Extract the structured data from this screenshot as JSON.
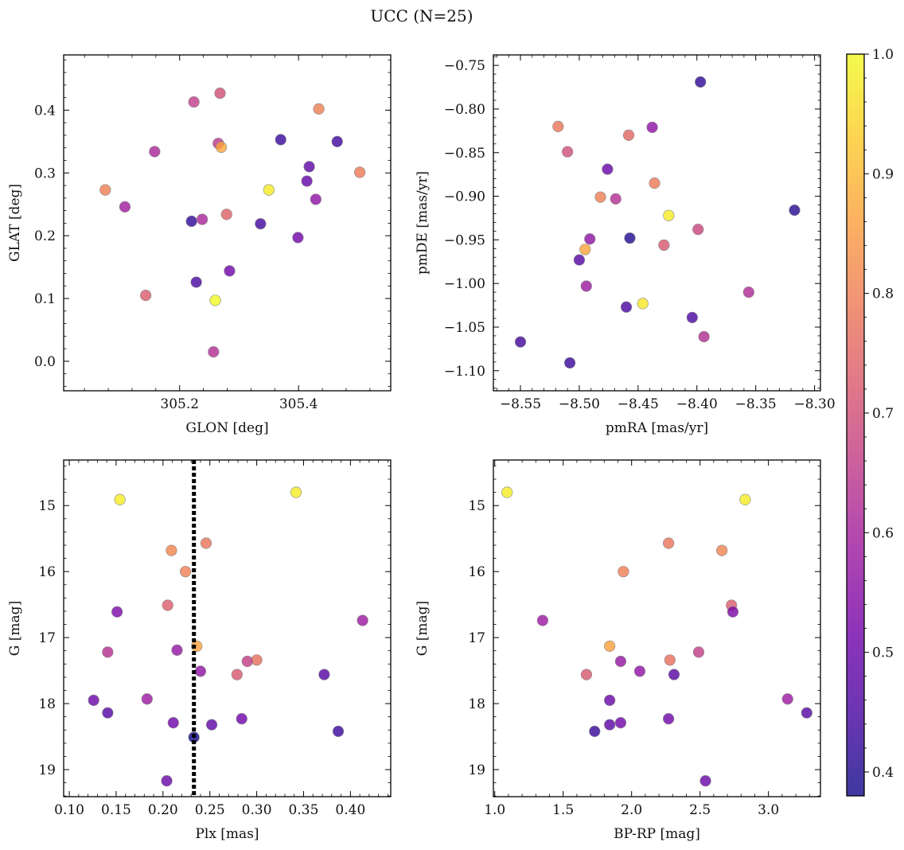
{
  "figure": {
    "title": "UCC (N=25)"
  },
  "colormap": {
    "name": "plasma",
    "stops": [
      "#0d0887",
      "#46039f",
      "#7201a8",
      "#9c179e",
      "#bd3786",
      "#d8576b",
      "#ed7953",
      "#fb9f3a",
      "#fdca26",
      "#f0f921"
    ],
    "marker_alpha": 0.8,
    "marker_edge_color": "#888888"
  },
  "colorbar": {
    "range": [
      0.38,
      1.0
    ],
    "ticks": [
      0.4,
      0.5,
      0.6,
      0.7,
      0.8,
      0.9,
      1.0
    ],
    "tick_labels": [
      "0.4",
      "0.5",
      "0.6",
      "0.7",
      "0.8",
      "0.9",
      "1.0"
    ]
  },
  "chart_data": [
    {
      "type": "scatter",
      "title": "",
      "xlabel": "GLON [deg]",
      "ylabel": "GLAT [deg]",
      "xlim": [
        305.005,
        305.555
      ],
      "ylim": [
        -0.047,
        0.488
      ],
      "xticks": [
        305.2,
        305.4
      ],
      "xtick_labels": [
        "305.2",
        "305.4"
      ],
      "yticks": [
        0.0,
        0.1,
        0.2,
        0.3,
        0.4
      ],
      "ytick_labels": [
        "0.0",
        "0.1",
        "0.2",
        "0.3",
        "0.4"
      ],
      "invert_y": false,
      "grid": false,
      "points": [
        {
          "x": 305.268,
          "y": 0.427,
          "c": 0.7
        },
        {
          "x": 305.224,
          "y": 0.413,
          "c": 0.66
        },
        {
          "x": 305.434,
          "y": 0.402,
          "c": 0.8
        },
        {
          "x": 305.37,
          "y": 0.353,
          "c": 0.43
        },
        {
          "x": 305.465,
          "y": 0.35,
          "c": 0.44
        },
        {
          "x": 305.265,
          "y": 0.347,
          "c": 0.65
        },
        {
          "x": 305.27,
          "y": 0.341,
          "c": 0.87
        },
        {
          "x": 305.158,
          "y": 0.334,
          "c": 0.61
        },
        {
          "x": 305.418,
          "y": 0.31,
          "c": 0.48
        },
        {
          "x": 305.503,
          "y": 0.301,
          "c": 0.79
        },
        {
          "x": 305.414,
          "y": 0.287,
          "c": 0.49
        },
        {
          "x": 305.075,
          "y": 0.273,
          "c": 0.8
        },
        {
          "x": 305.35,
          "y": 0.273,
          "c": 0.98
        },
        {
          "x": 305.429,
          "y": 0.258,
          "c": 0.56
        },
        {
          "x": 305.108,
          "y": 0.246,
          "c": 0.59
        },
        {
          "x": 305.279,
          "y": 0.234,
          "c": 0.74
        },
        {
          "x": 305.238,
          "y": 0.226,
          "c": 0.61
        },
        {
          "x": 305.22,
          "y": 0.223,
          "c": 0.42
        },
        {
          "x": 305.336,
          "y": 0.219,
          "c": 0.44
        },
        {
          "x": 305.399,
          "y": 0.197,
          "c": 0.51
        },
        {
          "x": 305.284,
          "y": 0.144,
          "c": 0.51
        },
        {
          "x": 305.228,
          "y": 0.126,
          "c": 0.45
        },
        {
          "x": 305.143,
          "y": 0.105,
          "c": 0.73
        },
        {
          "x": 305.26,
          "y": 0.097,
          "c": 1.0
        },
        {
          "x": 305.257,
          "y": 0.015,
          "c": 0.63
        }
      ]
    },
    {
      "type": "scatter",
      "title": "",
      "xlabel": "pmRA [mas/yr]",
      "ylabel": "pmDE [mas/yr]",
      "xlim": [
        -8.573,
        -8.295
      ],
      "ylim": [
        -1.123,
        -0.738
      ],
      "xticks": [
        -8.55,
        -8.5,
        -8.45,
        -8.4,
        -8.35,
        -8.3
      ],
      "xtick_labels": [
        "−8.55",
        "−8.50",
        "−8.45",
        "−8.40",
        "−8.35",
        "−8.30"
      ],
      "yticks": [
        -1.1,
        -1.05,
        -1.0,
        -0.95,
        -0.9,
        -0.85,
        -0.8,
        -0.75
      ],
      "ytick_labels": [
        "−1.10",
        "−1.05",
        "−1.00",
        "−0.95",
        "−0.90",
        "−0.85",
        "−0.80",
        "−0.75"
      ],
      "invert_y": false,
      "grid": false,
      "points": [
        {
          "x": -8.397,
          "y": -0.769,
          "c": 0.42
        },
        {
          "x": -8.518,
          "y": -0.82,
          "c": 0.78
        },
        {
          "x": -8.438,
          "y": -0.821,
          "c": 0.56
        },
        {
          "x": -8.458,
          "y": -0.83,
          "c": 0.75
        },
        {
          "x": -8.51,
          "y": -0.849,
          "c": 0.7
        },
        {
          "x": -8.476,
          "y": -0.869,
          "c": 0.5
        },
        {
          "x": -8.436,
          "y": -0.885,
          "c": 0.79
        },
        {
          "x": -8.482,
          "y": -0.901,
          "c": 0.8
        },
        {
          "x": -8.469,
          "y": -0.903,
          "c": 0.63
        },
        {
          "x": -8.317,
          "y": -0.916,
          "c": 0.41
        },
        {
          "x": -8.424,
          "y": -0.922,
          "c": 0.98
        },
        {
          "x": -8.399,
          "y": -0.938,
          "c": 0.68
        },
        {
          "x": -8.457,
          "y": -0.948,
          "c": 0.4
        },
        {
          "x": -8.491,
          "y": -0.949,
          "c": 0.56
        },
        {
          "x": -8.428,
          "y": -0.956,
          "c": 0.72
        },
        {
          "x": -8.495,
          "y": -0.961,
          "c": 0.87
        },
        {
          "x": -8.5,
          "y": -0.973,
          "c": 0.47
        },
        {
          "x": -8.494,
          "y": -1.003,
          "c": 0.58
        },
        {
          "x": -8.356,
          "y": -1.01,
          "c": 0.62
        },
        {
          "x": -8.446,
          "y": -1.023,
          "c": 0.97
        },
        {
          "x": -8.46,
          "y": -1.027,
          "c": 0.45
        },
        {
          "x": -8.404,
          "y": -1.039,
          "c": 0.45
        },
        {
          "x": -8.394,
          "y": -1.061,
          "c": 0.63
        },
        {
          "x": -8.55,
          "y": -1.067,
          "c": 0.44
        },
        {
          "x": -8.508,
          "y": -1.091,
          "c": 0.43
        }
      ]
    },
    {
      "type": "scatter",
      "title": "",
      "xlabel": "Plx [mas]",
      "ylabel": "G [mag]",
      "xlim": [
        0.094,
        0.443
      ],
      "ylim": [
        14.31,
        19.41
      ],
      "xticks": [
        0.1,
        0.15,
        0.2,
        0.25,
        0.3,
        0.35,
        0.4
      ],
      "xtick_labels": [
        "0.10",
        "0.15",
        "0.20",
        "0.25",
        "0.30",
        "0.35",
        "0.40"
      ],
      "yticks": [
        15,
        16,
        17,
        18,
        19
      ],
      "ytick_labels": [
        "15",
        "16",
        "17",
        "18",
        "19"
      ],
      "invert_y": true,
      "grid": false,
      "vline": {
        "x": 0.233,
        "style": "dotted",
        "color": "#000000"
      },
      "points": [
        {
          "x": 0.342,
          "y": 14.8,
          "c": 0.98
        },
        {
          "x": 0.154,
          "y": 14.91,
          "c": 0.98
        },
        {
          "x": 0.246,
          "y": 15.57,
          "c": 0.78
        },
        {
          "x": 0.209,
          "y": 15.68,
          "c": 0.81
        },
        {
          "x": 0.224,
          "y": 16.0,
          "c": 0.8
        },
        {
          "x": 0.205,
          "y": 16.51,
          "c": 0.73
        },
        {
          "x": 0.151,
          "y": 16.61,
          "c": 0.53
        },
        {
          "x": 0.413,
          "y": 16.74,
          "c": 0.58
        },
        {
          "x": 0.236,
          "y": 17.13,
          "c": 0.86
        },
        {
          "x": 0.141,
          "y": 17.22,
          "c": 0.63
        },
        {
          "x": 0.215,
          "y": 17.19,
          "c": 0.57
        },
        {
          "x": 0.3,
          "y": 17.34,
          "c": 0.77
        },
        {
          "x": 0.29,
          "y": 17.36,
          "c": 0.66
        },
        {
          "x": 0.24,
          "y": 17.51,
          "c": 0.56
        },
        {
          "x": 0.279,
          "y": 17.56,
          "c": 0.72
        },
        {
          "x": 0.372,
          "y": 17.56,
          "c": 0.47
        },
        {
          "x": 0.126,
          "y": 17.95,
          "c": 0.5
        },
        {
          "x": 0.183,
          "y": 17.93,
          "c": 0.58
        },
        {
          "x": 0.141,
          "y": 18.14,
          "c": 0.47
        },
        {
          "x": 0.284,
          "y": 18.23,
          "c": 0.51
        },
        {
          "x": 0.211,
          "y": 18.29,
          "c": 0.51
        },
        {
          "x": 0.252,
          "y": 18.32,
          "c": 0.48
        },
        {
          "x": 0.387,
          "y": 18.42,
          "c": 0.43
        },
        {
          "x": 0.233,
          "y": 18.51,
          "c": 0.38
        },
        {
          "x": 0.204,
          "y": 19.17,
          "c": 0.5
        }
      ]
    },
    {
      "type": "scatter",
      "title": "",
      "xlabel": "BP-RP [mag]",
      "ylabel": "G [mag]",
      "xlim": [
        0.99,
        3.38
      ],
      "ylim": [
        14.31,
        19.41
      ],
      "xticks": [
        1.0,
        1.5,
        2.0,
        2.5,
        3.0
      ],
      "xtick_labels": [
        "1.0",
        "1.5",
        "2.0",
        "2.5",
        "3.0"
      ],
      "yticks": [
        15,
        16,
        17,
        18,
        19
      ],
      "ytick_labels": [
        "15",
        "16",
        "17",
        "18",
        "19"
      ],
      "invert_y": true,
      "grid": false,
      "points": [
        {
          "x": 1.09,
          "y": 14.8,
          "c": 0.98
        },
        {
          "x": 2.83,
          "y": 14.91,
          "c": 0.98
        },
        {
          "x": 2.27,
          "y": 15.57,
          "c": 0.78
        },
        {
          "x": 2.66,
          "y": 15.68,
          "c": 0.81
        },
        {
          "x": 1.94,
          "y": 16.0,
          "c": 0.8
        },
        {
          "x": 2.73,
          "y": 16.51,
          "c": 0.73
        },
        {
          "x": 2.74,
          "y": 16.61,
          "c": 0.53
        },
        {
          "x": 1.35,
          "y": 16.74,
          "c": 0.58
        },
        {
          "x": 1.84,
          "y": 17.13,
          "c": 0.86
        },
        {
          "x": 2.49,
          "y": 17.22,
          "c": 0.66
        },
        {
          "x": 2.28,
          "y": 17.34,
          "c": 0.77
        },
        {
          "x": 1.92,
          "y": 17.36,
          "c": 0.57
        },
        {
          "x": 2.06,
          "y": 17.51,
          "c": 0.56
        },
        {
          "x": 1.67,
          "y": 17.56,
          "c": 0.72
        },
        {
          "x": 2.31,
          "y": 17.56,
          "c": 0.47
        },
        {
          "x": 1.84,
          "y": 17.95,
          "c": 0.5
        },
        {
          "x": 3.14,
          "y": 17.93,
          "c": 0.58
        },
        {
          "x": 3.28,
          "y": 18.14,
          "c": 0.47
        },
        {
          "x": 2.27,
          "y": 18.23,
          "c": 0.51
        },
        {
          "x": 1.92,
          "y": 18.29,
          "c": 0.51
        },
        {
          "x": 1.84,
          "y": 18.32,
          "c": 0.48
        },
        {
          "x": 1.73,
          "y": 18.42,
          "c": 0.43
        },
        {
          "x": 2.54,
          "y": 19.17,
          "c": 0.5
        }
      ]
    }
  ]
}
